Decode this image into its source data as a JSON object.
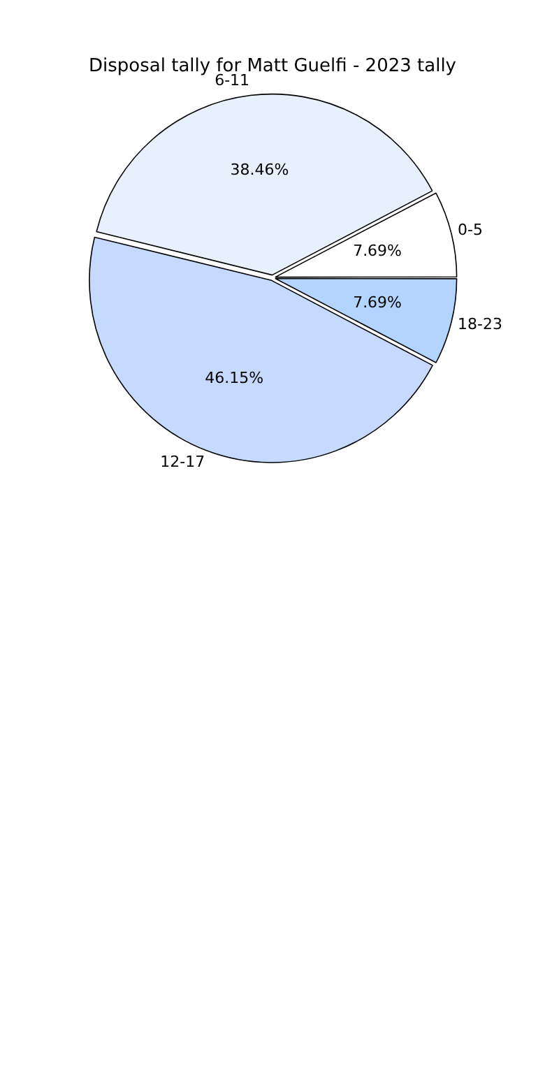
{
  "chart_data": {
    "type": "pie",
    "title": "Disposal tally for Matt Guelfi - 2023 tally",
    "categories": [
      "0-5",
      "6-11",
      "12-17",
      "18-23"
    ],
    "values": [
      7.69,
      38.46,
      46.15,
      7.69
    ],
    "colors": [
      "#ffffff",
      "#e8f0fe",
      "#c6d9fe",
      "#b3d4ff"
    ],
    "value_labels": [
      "7.69%",
      "38.46%",
      "46.15%",
      "7.69%"
    ],
    "legend": false
  }
}
